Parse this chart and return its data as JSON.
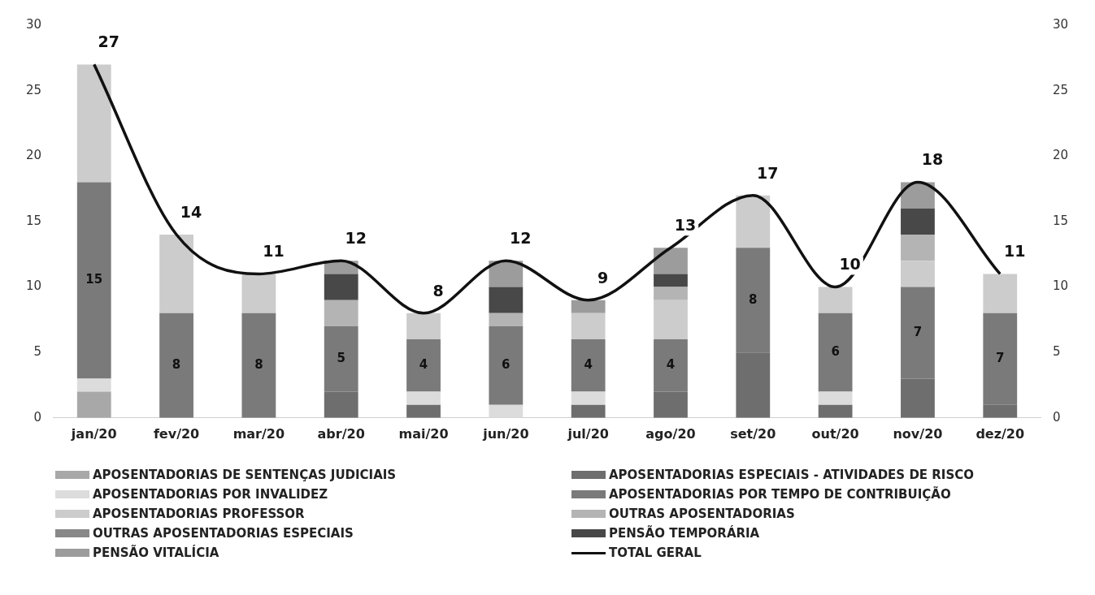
{
  "chart_data": {
    "type": "bar",
    "stacked": true,
    "categories": [
      "jan/20",
      "fev/20",
      "mar/20",
      "abr/20",
      "mai/20",
      "jun/20",
      "jul/20",
      "ago/20",
      "set/20",
      "out/20",
      "nov/20",
      "dez/20"
    ],
    "series": [
      {
        "name": "APOSENTADORIAS DE SENTENÇAS JUDICIAIS",
        "color": "#a8a8a8",
        "values": [
          2,
          null,
          null,
          null,
          null,
          null,
          null,
          null,
          null,
          null,
          null,
          null
        ]
      },
      {
        "name": "APOSENTADORIAS ESPECIAIS - ATIVIDADES DE RISCO",
        "color": "#6e6e6e",
        "values": [
          null,
          null,
          null,
          2,
          1,
          null,
          1,
          2,
          5,
          1,
          3,
          1
        ]
      },
      {
        "name": "APOSENTADORIAS POR INVALIDEZ",
        "color": "#dcdcdc",
        "values": [
          1,
          null,
          null,
          null,
          1,
          1,
          1,
          null,
          null,
          1,
          null,
          null
        ]
      },
      {
        "name": "APOSENTADORIAS POR TEMPO DE CONTRIBUIÇÃO",
        "color": "#7a7a7a",
        "values": [
          15,
          8,
          8,
          5,
          4,
          6,
          4,
          4,
          8,
          6,
          7,
          7
        ],
        "value_labels": [
          "15",
          "8",
          "8",
          "5",
          "4",
          "6",
          "4",
          "4",
          "8",
          "6",
          "7",
          "7"
        ]
      },
      {
        "name": "APOSENTADORIAS PROFESSOR",
        "color": "#cccccc",
        "values": [
          9,
          6,
          3,
          null,
          2,
          null,
          2,
          3,
          4,
          2,
          2,
          3
        ]
      },
      {
        "name": "OUTRAS APOSENTADORIAS",
        "color": "#b4b4b4",
        "values": [
          null,
          null,
          null,
          2,
          null,
          1,
          null,
          1,
          null,
          null,
          2,
          null
        ]
      },
      {
        "name": "OUTRAS APOSENTADORIAS ESPECIAIS",
        "color": "#888888",
        "values": [
          null,
          null,
          null,
          null,
          null,
          null,
          null,
          null,
          null,
          null,
          null,
          null
        ]
      },
      {
        "name": "PENSÃO TEMPORÁRIA",
        "color": "#484848",
        "values": [
          null,
          null,
          null,
          2,
          null,
          2,
          null,
          1,
          null,
          null,
          2,
          null
        ]
      },
      {
        "name": "PENSÃO VITALÍCIA",
        "color": "#9c9c9c",
        "values": [
          null,
          null,
          null,
          1,
          null,
          2,
          1,
          2,
          null,
          null,
          2,
          null
        ]
      },
      {
        "name": "TOTAL GERAL",
        "type": "line",
        "color": "#111111",
        "values": [
          27,
          14,
          11,
          12,
          8,
          12,
          9,
          13,
          17,
          10,
          18,
          11
        ],
        "value_labels": [
          "27",
          "14",
          "11",
          "12",
          "8",
          "12",
          "9",
          "13",
          "17",
          "10",
          "18",
          "11"
        ]
      }
    ],
    "ylim": [
      0,
      30
    ],
    "yticks": [
      0,
      5,
      10,
      15,
      20,
      25,
      30
    ],
    "y2lim": [
      0,
      30
    ],
    "y2ticks": [
      0,
      5,
      10,
      15,
      20,
      25,
      30
    ],
    "grid": false,
    "legend": "bottom",
    "marker": "none"
  }
}
